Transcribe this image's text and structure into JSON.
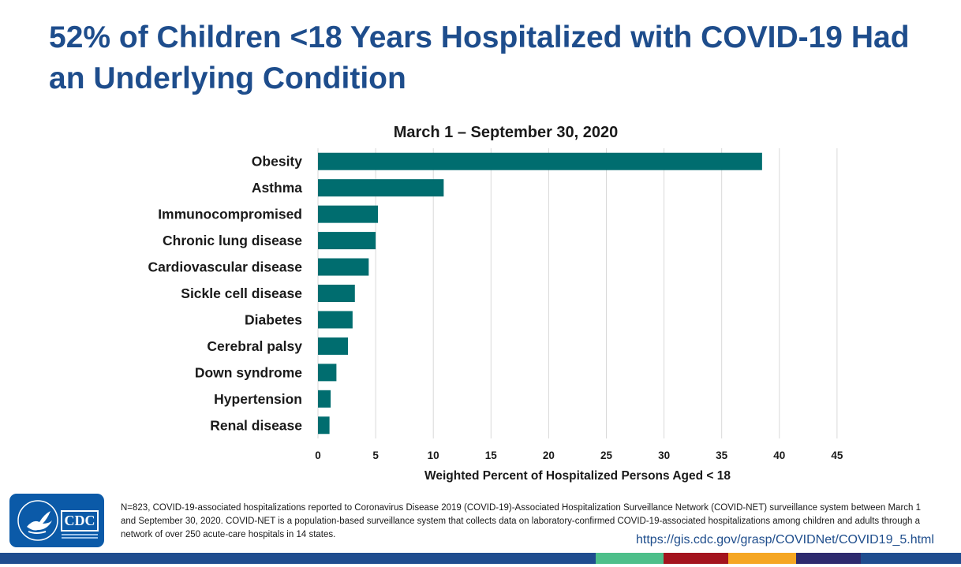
{
  "title": "52% of Children <18 Years Hospitalized with COVID-19 Had an Underlying Condition",
  "chart_data": {
    "type": "bar",
    "orientation": "horizontal",
    "title": "March 1 – September 30, 2020",
    "xlabel": "Weighted Percent of Hospitalized Persons Aged < 18",
    "ylabel": "",
    "categories": [
      "Obesity",
      "Asthma",
      "Immunocompromised",
      "Chronic lung disease",
      "Cardiovascular disease",
      "Sickle cell disease",
      "Diabetes",
      "Cerebral palsy",
      "Down syndrome",
      "Hypertension",
      "Renal disease"
    ],
    "values": [
      38.5,
      10.9,
      5.2,
      5.0,
      4.4,
      3.2,
      3.0,
      2.6,
      1.6,
      1.1,
      1.0
    ],
    "xlim": [
      0,
      45
    ],
    "xticks": [
      0,
      5,
      10,
      15,
      20,
      25,
      30,
      35,
      40,
      45
    ],
    "grid": "vertical",
    "bar_color": "#006d6f"
  },
  "footnote": "N=823, COVID-19-associated hospitalizations reported to Coronavirus Disease 2019 (COVID-19)-Associated Hospitalization Surveillance Network (COVID-NET) surveillance system between March 1 and September 30, 2020. COVID-NET is a population-based surveillance system that collects data on laboratory-confirmed COVID-19-associated hospitalizations among children and adults through a network of over 250 acute-care hospitals in 14 states.",
  "source_url": "https://gis.cdc.gov/grasp/COVIDNet/COVID19_5.html",
  "logo": {
    "text": "CDC",
    "icon": "hhs-eagle-icon"
  },
  "colors": {
    "title": "#1e4d8c",
    "bar": "#006d6f",
    "footer_bar": [
      "#1f4d8f",
      "#4dbf8a",
      "#a3141e",
      "#f5a623",
      "#2d2a6e",
      "#1f4d8f"
    ]
  }
}
